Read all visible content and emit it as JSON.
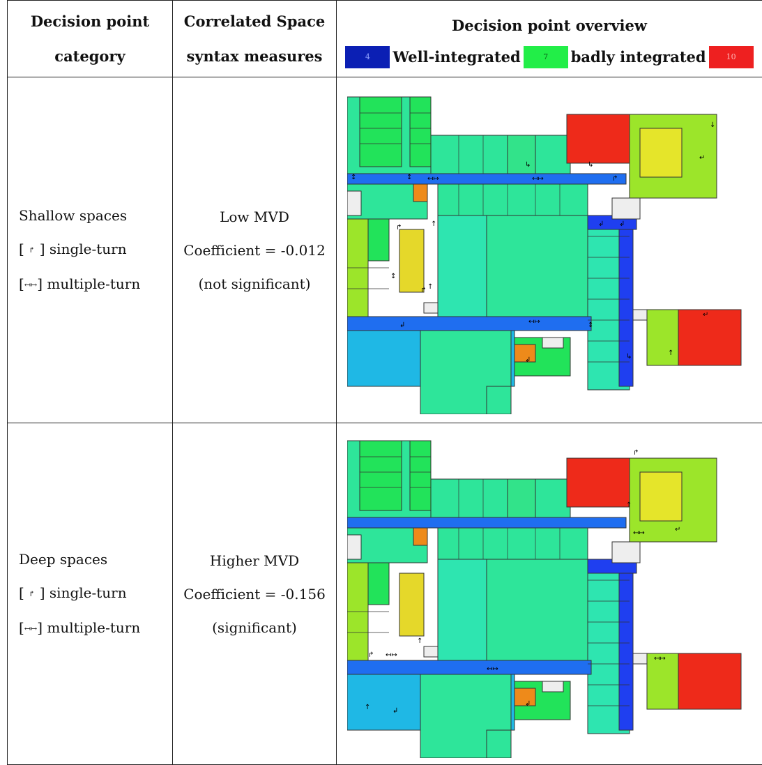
{
  "header": {
    "col1_line1": "Decision point",
    "col1_line2": "category",
    "col2_line1": "Correlated Space",
    "col2_line2": "syntax measures",
    "col3_line1": "Decision point overview",
    "legend": {
      "low_value": "4",
      "low_label": "Well-integrated",
      "mid_value": "7",
      "mid_label": "badly integrated",
      "high_value": "10",
      "colors": {
        "low": "#0b1fb4",
        "mid": "#22ee48",
        "high": "#ee2020"
      }
    }
  },
  "rows": [
    {
      "category": "Shallow spaces",
      "single_label": "single-turn",
      "multiple_label": "multiple-turn",
      "measure": "Low MVD",
      "coefficient": "Coefficient = -0.012",
      "significance": "(not significant)"
    },
    {
      "category": "Deep spaces",
      "single_label": "single-turn",
      "multiple_label": "multiple-turn",
      "measure": "Higher MVD",
      "coefficient": "Coefficient = -0.156",
      "significance": "(significant)"
    }
  ],
  "icons": {
    "single_turn": "single-turn-arrow-icon",
    "multiple_turn": "multiple-turn-arrow-icon"
  }
}
